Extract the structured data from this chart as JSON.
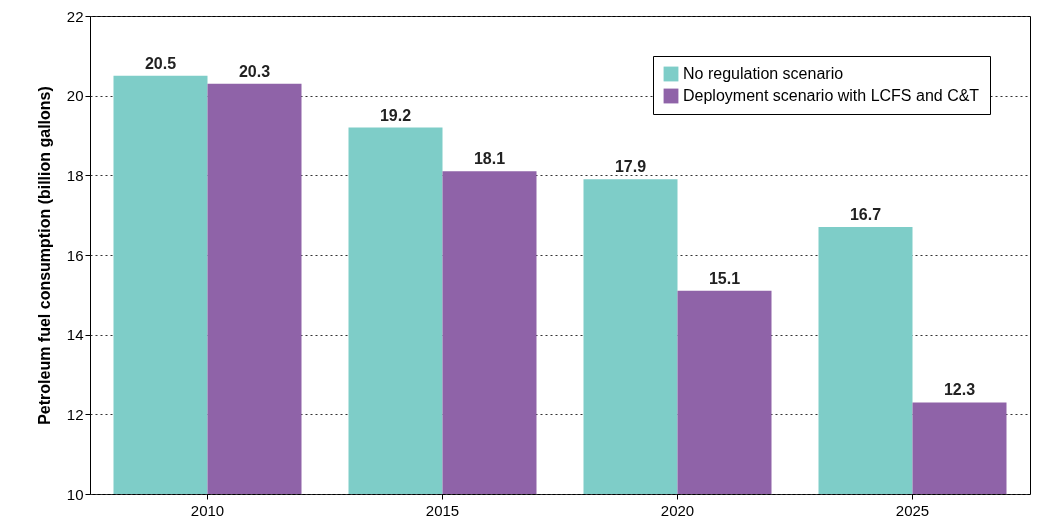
{
  "chart_data": {
    "type": "bar",
    "ylabel": "Petroleum fuel consumption (billion gallons)",
    "categories": [
      "2010",
      "2015",
      "2020",
      "2025"
    ],
    "series": [
      {
        "name": "No regulation scenario",
        "color": "#7ecdc8",
        "values": [
          20.5,
          19.2,
          17.9,
          16.7
        ]
      },
      {
        "name": "Deployment scenario with LCFS and C&T",
        "color": "#8f63a8",
        "values": [
          20.3,
          18.1,
          15.1,
          12.3
        ]
      }
    ],
    "ylim": [
      10,
      22
    ],
    "yticks": [
      10,
      12,
      14,
      16,
      18,
      20,
      22
    ],
    "grid": "y",
    "legend": "top right",
    "data_labels": true
  }
}
